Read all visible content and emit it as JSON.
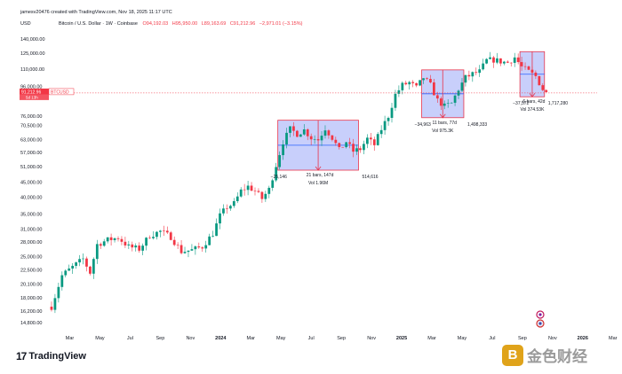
{
  "header": {
    "author_line": "jamesv20476 created with TradingView.com, Nov 18, 2025 11:17 UTC",
    "currency": "USD",
    "symbol_line": "Bitcoin / U.S. Dollar · 1W · Coinbase",
    "ohlc": [
      "O94,192.03",
      "H95,950.00",
      "L89,163.69",
      "C91,212.96",
      "−2,971.01 (−3.15%)"
    ]
  },
  "price_label": {
    "value": "91,212.96",
    "symbol": "BTCUSD",
    "countdown": "5d 13h"
  },
  "colors": {
    "up": "#089981",
    "down": "#f23645",
    "box_fill": "#7b8cf5",
    "box_stroke": "#e8334a",
    "price": "#f23645"
  },
  "footer": {
    "tv_logo_mark": "17",
    "tv_logo_text": "TradingView",
    "watermark_glyph": "B",
    "watermark_text": "金色财经"
  },
  "chart_data": {
    "type": "candlestick",
    "y_scale": "log",
    "ylim": [
      14000,
      150000
    ],
    "y_ticks": [
      140000,
      125000,
      110000,
      96000,
      76000,
      70500,
      63000,
      57000,
      51000,
      45000,
      40000,
      35000,
      31000,
      28000,
      25000,
      22500,
      20100,
      18000,
      16200,
      14800
    ],
    "y_tick_labels": [
      "140,000.00",
      "125,000.00",
      "110,000.00",
      "96,000.00",
      "76,000.00",
      "70,500.00",
      "63,000.00",
      "57,000.00",
      "51,000.00",
      "45,000.00",
      "40,000.00",
      "35,000.00",
      "31,000.00",
      "28,000.00",
      "25,000.00",
      "22,500.00",
      "20,100.00",
      "18,000.00",
      "16,200.00",
      "14,800.00"
    ],
    "x_ticks": [
      "Mar",
      "May",
      "Jul",
      "Sep",
      "Nov",
      "2024",
      "Mar",
      "May",
      "Jul",
      "Sep",
      "Nov",
      "2025",
      "Mar",
      "May",
      "Jul",
      "Sep",
      "Nov",
      "2026",
      "Mar"
    ],
    "last_price": 91212.96,
    "weekly_close_path": [
      [
        0,
        16800
      ],
      [
        3,
        21500
      ],
      [
        6,
        23000
      ],
      [
        9,
        24500
      ],
      [
        11,
        22000
      ],
      [
        13,
        27500
      ],
      [
        16,
        28500
      ],
      [
        19,
        29000
      ],
      [
        22,
        27000
      ],
      [
        25,
        26500
      ],
      [
        28,
        29500
      ],
      [
        31,
        30500
      ],
      [
        34,
        29200
      ],
      [
        37,
        26000
      ],
      [
        40,
        26300
      ],
      [
        43,
        27000
      ],
      [
        46,
        30000
      ],
      [
        48,
        34500
      ],
      [
        50,
        37000
      ],
      [
        52,
        38000
      ],
      [
        54,
        42000
      ],
      [
        56,
        43500
      ],
      [
        58,
        42000
      ],
      [
        60,
        39500
      ],
      [
        62,
        42500
      ],
      [
        64,
        51500
      ],
      [
        66,
        62000
      ],
      [
        68,
        68500
      ],
      [
        70,
        66000
      ],
      [
        72,
        68000
      ],
      [
        74,
        64000
      ],
      [
        76,
        63000
      ],
      [
        78,
        69000
      ],
      [
        80,
        64000
      ],
      [
        82,
        58000
      ],
      [
        84,
        62000
      ],
      [
        86,
        57500
      ],
      [
        88,
        58500
      ],
      [
        90,
        63500
      ],
      [
        92,
        60500
      ],
      [
        94,
        68500
      ],
      [
        96,
        76000
      ],
      [
        98,
        90000
      ],
      [
        100,
        97000
      ],
      [
        102,
        99000
      ],
      [
        104,
        95000
      ],
      [
        106,
        103000
      ],
      [
        108,
        97000
      ],
      [
        110,
        86000
      ],
      [
        112,
        82000
      ],
      [
        114,
        84000
      ],
      [
        116,
        94000
      ],
      [
        118,
        103000
      ],
      [
        120,
        106000
      ],
      [
        122,
        108000
      ],
      [
        124,
        118000
      ],
      [
        126,
        118500
      ],
      [
        128,
        117000
      ],
      [
        130,
        116000
      ],
      [
        132,
        121000
      ],
      [
        134,
        112000
      ],
      [
        136,
        108000
      ],
      [
        138,
        104000
      ],
      [
        140,
        94000
      ],
      [
        141,
        91212.96
      ]
    ],
    "measurements": [
      {
        "price_change": "−25,146",
        "bars": "21 bars, 147d",
        "vol": "Vol 1.96M",
        "amount": "514,616",
        "top": 73500,
        "bottom": 49500,
        "start": 65,
        "end": 87
      },
      {
        "price_change": "−34,963",
        "bars": "11 bars, 77d",
        "vol": "Vol 975.3K",
        "amount": "1,498,333",
        "top": 109500,
        "bottom": 75000,
        "start": 106,
        "end": 117
      },
      {
        "price_change": "−37,572",
        "bars": "6 bars, 42d",
        "vol": "Vol 374.53K",
        "amount": "1,717,280",
        "top": 126500,
        "bottom": 88500,
        "start": 134,
        "end": 140
      }
    ]
  }
}
